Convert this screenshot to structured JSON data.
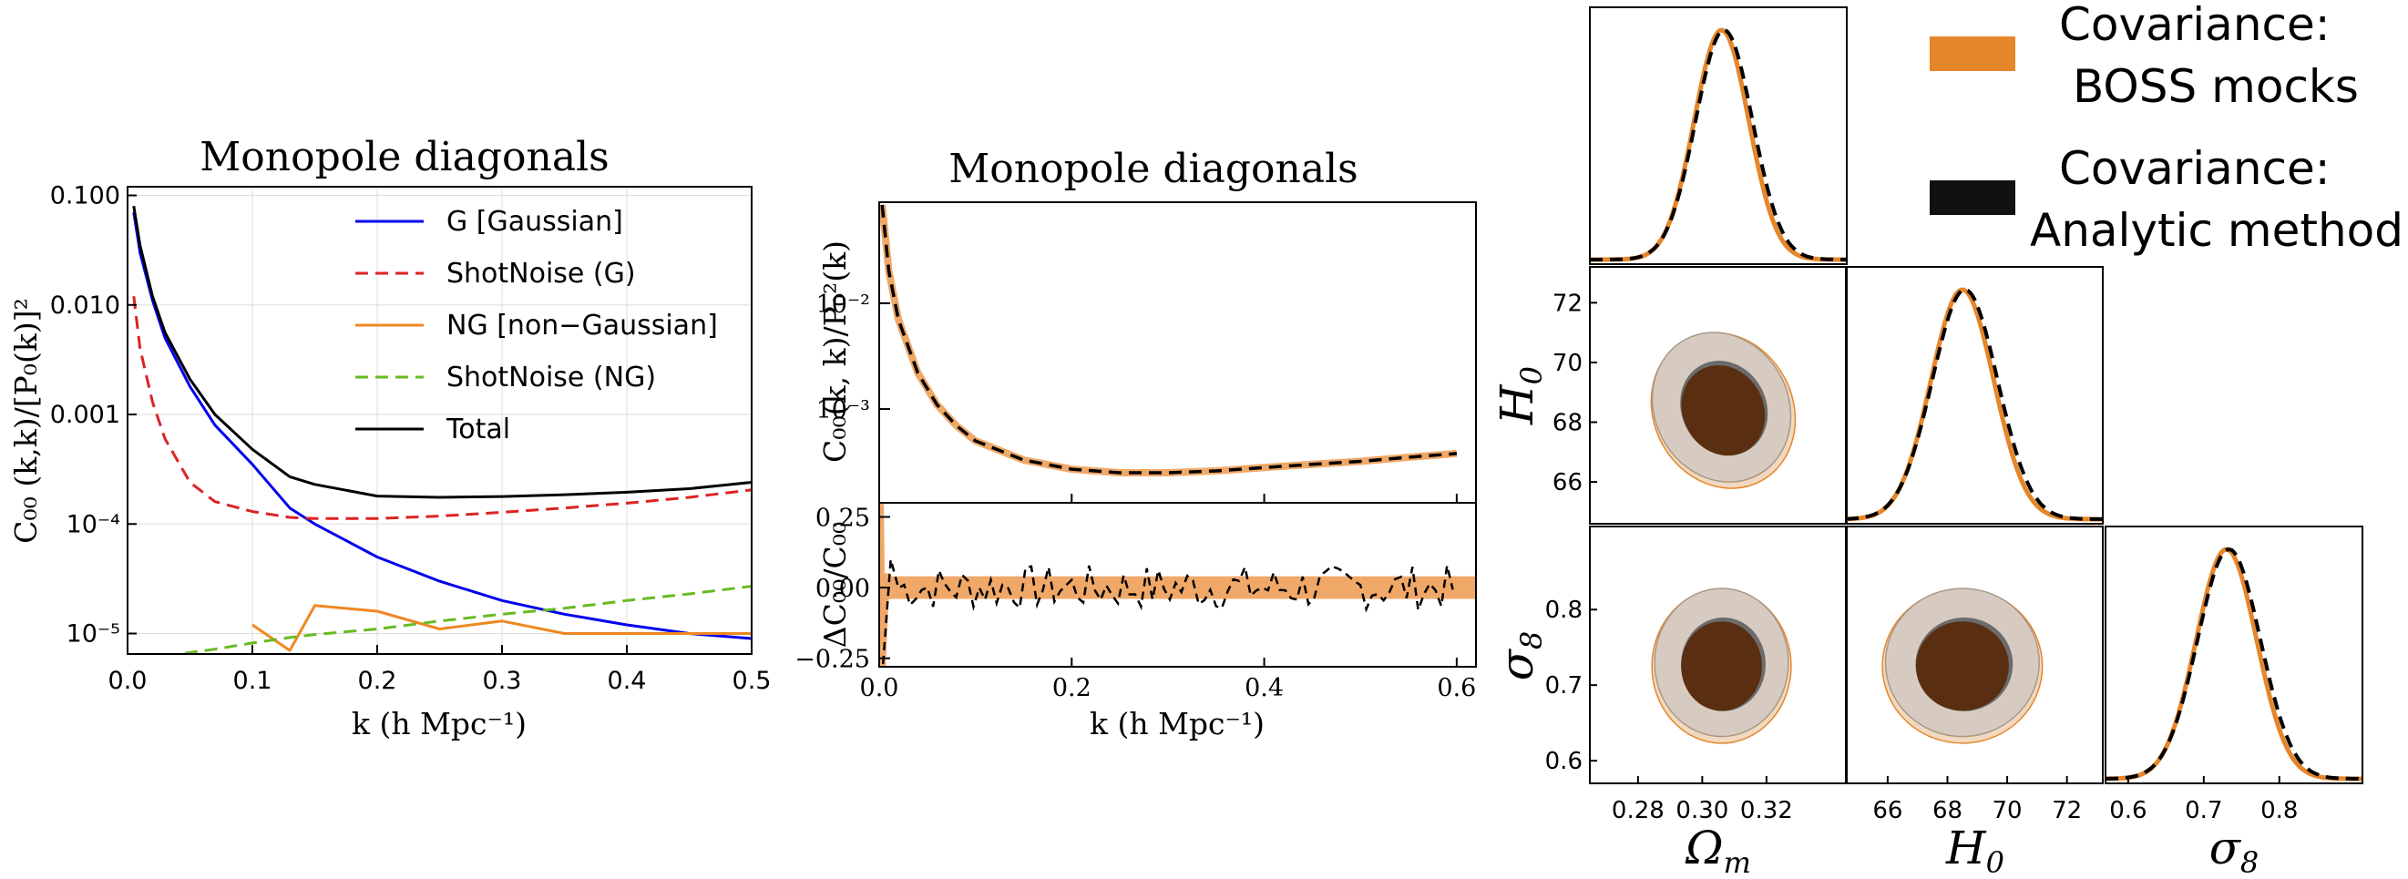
{
  "chart_data": [
    {
      "type": "line",
      "title": "Monopole diagonals",
      "xlabel": "k (h Mpc⁻¹)",
      "ylabel": "C₀₀ (k,k)/[P₀(k)]²",
      "xlim": [
        0.0,
        0.5
      ],
      "ylim": [
        6.5e-06,
        0.12
      ],
      "yscale": "log",
      "grid": true,
      "legend_position": "upper-right",
      "x_ticks": [
        "0.0",
        "0.1",
        "0.2",
        "0.3",
        "0.4",
        "0.5"
      ],
      "y_ticks": [
        "0.100",
        "0.010",
        "0.001",
        "10⁻⁴",
        "10⁻⁵"
      ],
      "x": [
        0.005,
        0.01,
        0.02,
        0.03,
        0.05,
        0.07,
        0.1,
        0.13,
        0.15,
        0.2,
        0.25,
        0.3,
        0.35,
        0.4,
        0.45,
        0.5
      ],
      "series": [
        {
          "name": "G [Gaussian]",
          "color": "#0000ee",
          "dash": "solid",
          "values": [
            0.07,
            0.03,
            0.011,
            0.005,
            0.0018,
            0.0008,
            0.00035,
            0.00014,
            0.0001,
            5e-05,
            3e-05,
            2e-05,
            1.5e-05,
            1.2e-05,
            1e-05,
            9e-06
          ]
        },
        {
          "name": "ShotNoise (G)",
          "color": "#dd2222",
          "dash": "dashed",
          "values": [
            0.012,
            0.004,
            0.0013,
            0.0006,
            0.00024,
            0.00016,
            0.00013,
            0.000115,
            0.000112,
            0.000112,
            0.000118,
            0.000128,
            0.00014,
            0.000155,
            0.000175,
            0.000205
          ]
        },
        {
          "name": "NG [non−Gaussian]",
          "color": "#ee8822",
          "dash": "solid",
          "values": [
            null,
            null,
            null,
            null,
            null,
            null,
            1.2e-05,
            7e-06,
            1.8e-05,
            1.6e-05,
            1.1e-05,
            1.3e-05,
            1e-05,
            1e-05,
            1e-05,
            1e-05
          ]
        },
        {
          "name": "ShotNoise (NG)",
          "color": "#66bb22",
          "dash": "dashed",
          "values": [
            null,
            null,
            null,
            6.2e-06,
            6.7e-06,
            7.2e-06,
            8.2e-06,
            9.2e-06,
            9.8e-06,
            1.1e-05,
            1.3e-05,
            1.5e-05,
            1.7e-05,
            2e-05,
            2.3e-05,
            2.7e-05
          ]
        },
        {
          "name": "Total",
          "color": "#000000",
          "dash": "solid",
          "values": [
            0.08,
            0.035,
            0.012,
            0.0056,
            0.0021,
            0.001,
            0.00048,
            0.00027,
            0.00023,
            0.00018,
            0.000175,
            0.000178,
            0.000185,
            0.000195,
            0.00021,
            0.00024
          ]
        }
      ]
    },
    {
      "type": "line",
      "title": "Monopole diagonals",
      "xlabel": "k (h Mpc⁻¹)",
      "ylabel": "C₀₀(k, k)/P₀²(k)",
      "ylabel_lower": "ΔC₀₀/C₀₀",
      "xlim": [
        0.0,
        0.62
      ],
      "ylim": [
        0.00013,
        0.09
      ],
      "yscale": "log",
      "ylim_lower": [
        -0.28,
        0.3
      ],
      "x_ticks": [
        "0.0",
        "0.2",
        "0.4",
        "0.6"
      ],
      "y_ticks": [
        "10⁻²",
        "10⁻³"
      ],
      "y_ticks_lower": [
        "0.25",
        "0.00",
        "−0.25"
      ],
      "x": [
        0.003,
        0.01,
        0.02,
        0.04,
        0.06,
        0.08,
        0.1,
        0.15,
        0.2,
        0.25,
        0.3,
        0.35,
        0.4,
        0.45,
        0.5,
        0.55,
        0.6
      ],
      "series": [
        {
          "name": "",
          "color": "#f0a868",
          "dash": "solid",
          "values": [
            0.085,
            0.02,
            0.007,
            0.0022,
            0.0011,
            0.0007,
            0.0005,
            0.00033,
            0.00027,
            0.00025,
            0.00025,
            0.00026,
            0.00028,
            0.0003,
            0.00032,
            0.00035,
            0.00038
          ]
        },
        {
          "name": "",
          "color": "#000000",
          "dash": "dashed",
          "values": [
            0.085,
            0.02,
            0.007,
            0.0022,
            0.0011,
            0.0007,
            0.0005,
            0.00033,
            0.00027,
            0.00025,
            0.00025,
            0.00026,
            0.00028,
            0.0003,
            0.00032,
            0.00035,
            0.00038
          ]
        }
      ],
      "lower_band": {
        "color": "#f0a868",
        "low": -0.04,
        "high": 0.04
      },
      "lower_dashed_amplitude": 0.08
    },
    {
      "type": "corner",
      "legend": [
        {
          "label_line1": "Covariance:",
          "label_line2": "BOSS mocks",
          "color": "#e6862a"
        },
        {
          "label_line1": "Covariance:",
          "label_line2": "Analytic method",
          "color": "#111111"
        }
      ],
      "params": [
        {
          "symbol": "Ω",
          "sub": "m",
          "range": [
            0.265,
            0.345
          ],
          "mean": 0.306,
          "sigma": 0.0085,
          "ticks": [
            "0.28",
            "0.30",
            "0.32"
          ],
          "tick_values": [
            0.28,
            0.3,
            0.32
          ]
        },
        {
          "symbol": "H",
          "sub": "0",
          "range": [
            64.6,
            73.2
          ],
          "mean": 68.5,
          "sigma": 1.05,
          "ticks": [
            "66",
            "68",
            "70",
            "72"
          ],
          "tick_values": [
            66,
            68,
            70,
            72
          ]
        },
        {
          "symbol": "σ",
          "sub": "8",
          "range": [
            0.57,
            0.91
          ],
          "mean": 0.73,
          "sigma": 0.04,
          "ticks": [
            "0.6",
            "0.7",
            "0.8"
          ],
          "tick_values": [
            0.6,
            0.7,
            0.8
          ]
        }
      ],
      "contour_colors": {
        "outer": "#d7cbc1",
        "inner": "#5a2e10",
        "edge": "#e6862a"
      }
    }
  ]
}
